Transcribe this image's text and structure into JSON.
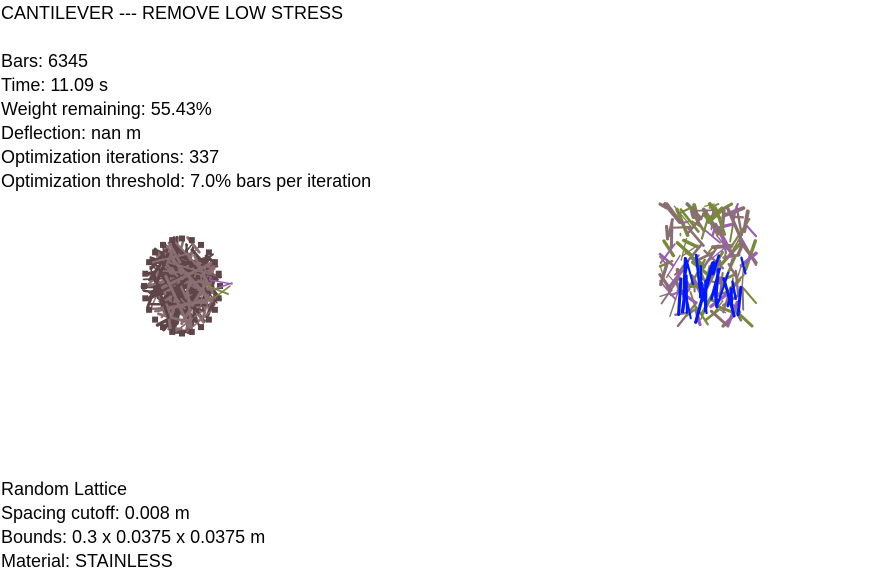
{
  "title": "CANTILEVER --- REMOVE LOW STRESS",
  "stats": {
    "bars": "Bars: 6345",
    "time": "Time: 11.09 s",
    "weight": "Weight remaining: 55.43%",
    "deflection": "Deflection: nan m",
    "iterations": "Optimization iterations: 337",
    "threshold": "Optimization threshold: 7.0% bars per iteration"
  },
  "lattice": {
    "type": "Random Lattice",
    "spacing": "Spacing cutoff: 0.008 m",
    "bounds": "Bounds: 0.3 x 0.0375 x 0.0375 m",
    "material": "Material: STAINLESS"
  },
  "colors": {
    "bar_mauve": "#8a6f72",
    "bar_mauve_dark": "#5e4548",
    "bar_olive": "#7a8a3c",
    "bar_purple": "#9b5fb0",
    "force_blue": "#0018ff"
  }
}
